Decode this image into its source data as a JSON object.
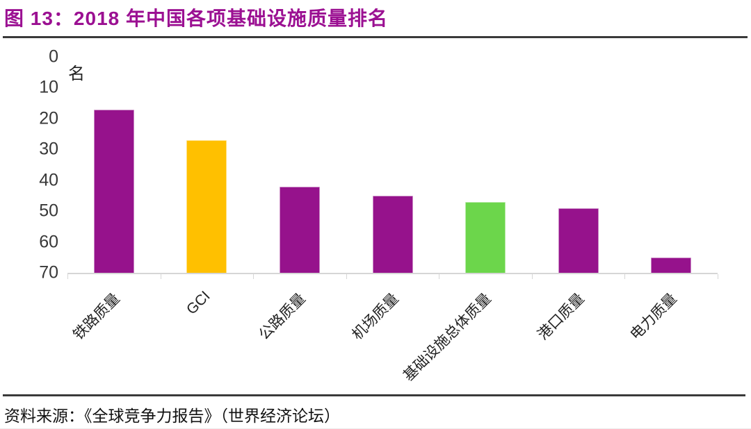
{
  "figure": {
    "title": "图 13：2018 年中国各项基础设施质量排名",
    "source": "资料来源：《全球竞争力报告》（世界经济论坛）"
  },
  "chart_data": {
    "type": "bar",
    "title": "2018 年中国各项基础设施质量排名",
    "categories": [
      "铁路质量",
      "GCI",
      "公路质量",
      "机场质量",
      "基础设施总体质量",
      "港口质量",
      "电力质量"
    ],
    "values": [
      17,
      27,
      42,
      45,
      47,
      49,
      65
    ],
    "bar_colors": [
      "#96128C",
      "#FFC000",
      "#96128C",
      "#96128C",
      "#6CD64B",
      "#96128C",
      "#96128C"
    ],
    "xlabel": "",
    "ylabel": "名",
    "unit_label": "名",
    "yticks": [
      0,
      10,
      20,
      30,
      40,
      50,
      60,
      70
    ],
    "ylim": [
      0,
      70
    ],
    "y_axis_inverted": true,
    "grid": false,
    "legend": "none",
    "x_label_rotation_deg": 45
  },
  "colors": {
    "title_text": "#9B1092",
    "separator_line": "#3a3a3a",
    "axis_line": "#D6D6D6",
    "tick_text": "#383838",
    "bar_purple": "#96128C",
    "bar_yellow": "#FFC000",
    "bar_green": "#6CD64B"
  }
}
